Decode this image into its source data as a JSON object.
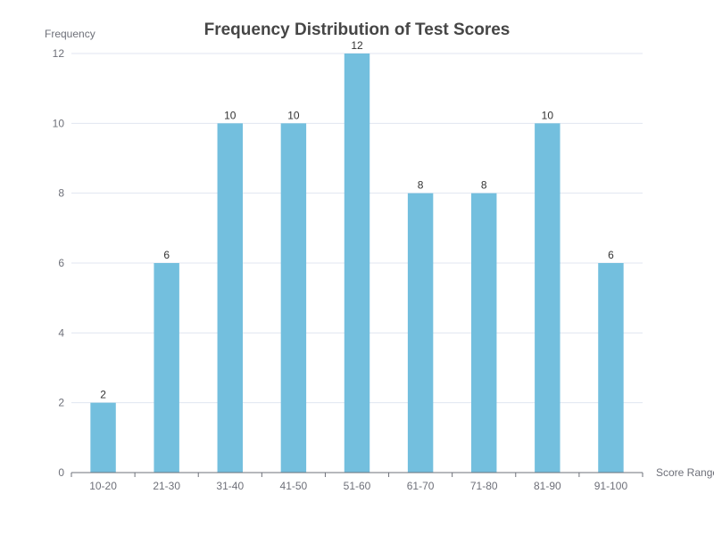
{
  "chart_data": {
    "type": "bar",
    "title": "Frequency Distribution of Test Scores",
    "xlabel": "Score Range",
    "ylabel": "Frequency",
    "categories": [
      "10-20",
      "21-30",
      "31-40",
      "41-50",
      "51-60",
      "61-70",
      "71-80",
      "81-90",
      "91-100"
    ],
    "values": [
      2,
      6,
      10,
      10,
      12,
      8,
      8,
      10,
      6
    ],
    "ylim": [
      0,
      12
    ],
    "yticks": [
      0,
      2,
      4,
      6,
      8,
      10,
      12
    ],
    "grid": true,
    "legend": "none",
    "bar_color": "#73bfde"
  }
}
